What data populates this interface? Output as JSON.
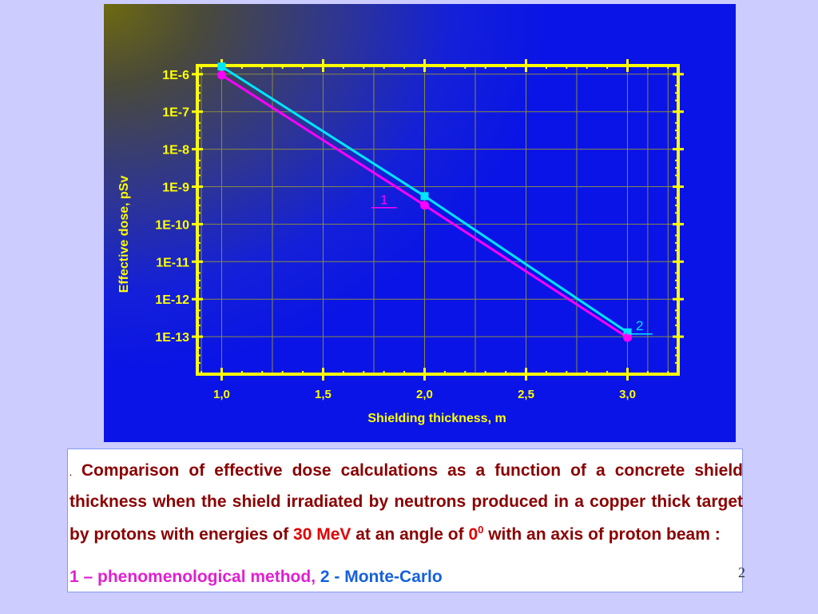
{
  "chart_data": {
    "type": "line",
    "xlabel": "Shielding thickness, m",
    "ylabel": "Effective dose, pSv",
    "x_scale": "linear",
    "y_scale": "log",
    "xlim": [
      0.88,
      3.25
    ],
    "ylim": [
      1e-14,
      1.7e-06
    ],
    "x_ticks": [
      1.0,
      1.5,
      2.0,
      2.5,
      3.0
    ],
    "x_tick_labels": [
      "1,0",
      "1,5",
      "2,0",
      "2,5",
      "3,0"
    ],
    "y_ticks": [
      1e-06,
      1e-07,
      1e-08,
      1e-09,
      1e-10,
      1e-11,
      1e-12,
      1e-13
    ],
    "y_tick_labels": [
      "1E-6",
      "1E-7",
      "1E-8",
      "1E-9",
      "1E-10",
      "1E-11",
      "1E-12",
      "1E-13"
    ],
    "grid": true,
    "series": [
      {
        "name": "1",
        "color": "#ff00ff",
        "marker": "circle",
        "x": [
          1.0,
          2.0,
          3.0
        ],
        "y": [
          9.5e-07,
          3.2e-10,
          9.5e-14
        ]
      },
      {
        "name": "2",
        "color": "#00e5ff",
        "marker": "square",
        "x": [
          1.0,
          2.0,
          3.0
        ],
        "y": [
          1.6e-06,
          5.6e-10,
          1.3e-13
        ]
      }
    ]
  },
  "colors": {
    "axis_frame": "#ffff00",
    "axis_text": "#ffff00",
    "grid": "#8a8a40",
    "series_1": "#ff00ff",
    "series_2": "#00e5ff"
  },
  "caption": {
    "lead_dot": ".",
    "main_text": " Comparison of effective dose calculations as a function of a concrete shield thickness when the shield irradiated by neutrons produced in a copper thick target by protons with energies of ",
    "energy": "30 MeV",
    "mid_text": " at an angle of ",
    "angle_value": "0",
    "angle_sup": "0",
    "end_text": " with an axis of proton beam :",
    "legend_1": "1 – phenomenological method,",
    "legend_2": " 2 - Monte-Carlo"
  },
  "page_number": "2"
}
